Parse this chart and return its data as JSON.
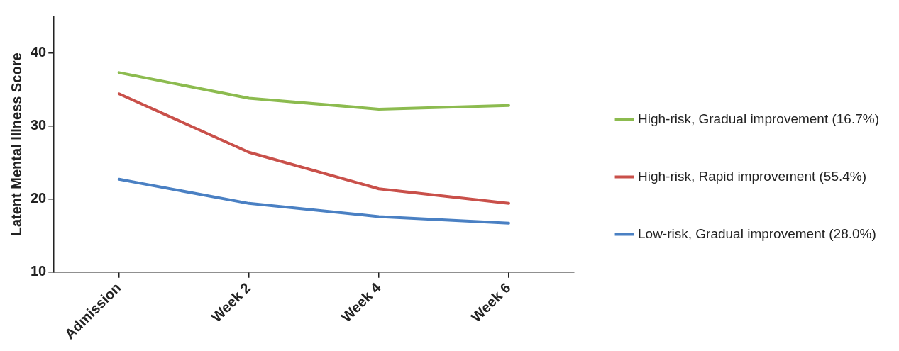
{
  "chart_data": {
    "type": "line",
    "ylabel": "Latent Mental Illness Score",
    "categories": [
      "Admission",
      "Week 2",
      "Week 4",
      "Week 6"
    ],
    "series": [
      {
        "name": "High-risk, Gradual improvement (16.7%)",
        "color": "#8cbb4f",
        "values": [
          37.3,
          33.8,
          32.3,
          32.8
        ]
      },
      {
        "name": "High-risk, Rapid improvement (55.4%)",
        "color": "#c9504a",
        "values": [
          34.4,
          26.4,
          21.4,
          19.4
        ]
      },
      {
        "name": "Low-risk, Gradual improvement (28.0%)",
        "color": "#4a80c3",
        "values": [
          22.7,
          19.4,
          17.6,
          16.7
        ]
      }
    ],
    "ylim": [
      10,
      45
    ],
    "yticks": [
      10,
      20,
      30,
      40
    ],
    "grid": false,
    "legend": "right",
    "marker": "none",
    "line_style": "solid"
  }
}
